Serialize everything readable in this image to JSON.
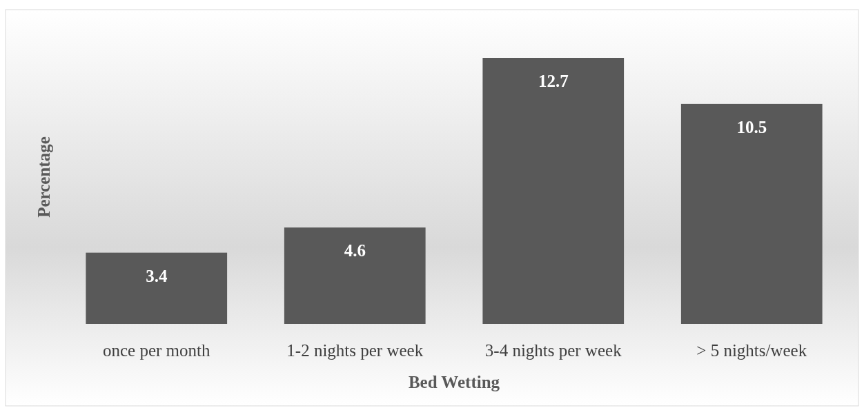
{
  "chart_data": {
    "type": "bar",
    "xlabel": "Bed Wetting",
    "ylabel": "Percentage",
    "categories": [
      "once per month",
      "1-2 nights per week",
      "3-4 nights per week",
      "> 5 nights/week"
    ],
    "values": [
      3.4,
      4.6,
      12.7,
      10.5
    ],
    "color": "#595959",
    "data_labels": true
  }
}
